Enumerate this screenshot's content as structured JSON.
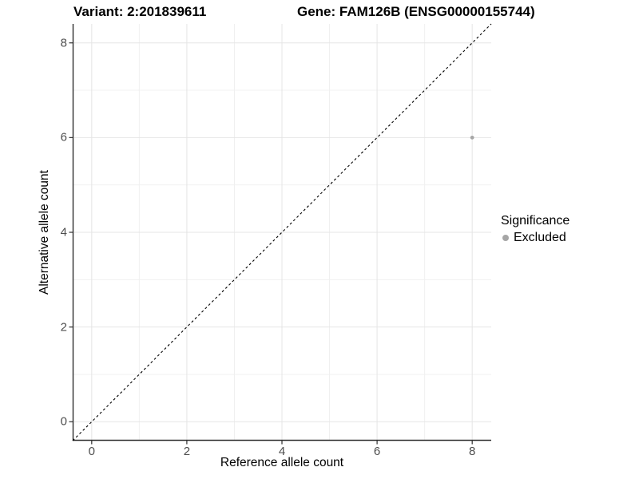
{
  "header": {
    "variant_title": "Variant: 2:201839611",
    "gene_title": "Gene: FAM126B (ENSG00000155744)"
  },
  "chart_data": {
    "type": "scatter",
    "title": "Variant: 2:201839611 | Gene: FAM126B (ENSG00000155744)",
    "xlabel": "Reference allele count",
    "ylabel": "Alternative allele count",
    "xlim": [
      -0.4,
      8.4
    ],
    "ylim": [
      -0.4,
      8.4
    ],
    "x_ticks": [
      0,
      2,
      4,
      6,
      8
    ],
    "y_ticks": [
      0,
      2,
      4,
      6,
      8
    ],
    "x_minor_gridlines": [
      1,
      3,
      5,
      7
    ],
    "y_minor_gridlines": [
      1,
      3,
      5,
      7
    ],
    "grid": true,
    "legend_position": "right",
    "series": [
      {
        "name": "Excluded",
        "color": "#a6a6a6",
        "points": [
          {
            "x": 8,
            "y": 6
          }
        ]
      }
    ],
    "reference_line": {
      "equation": "y = x",
      "style": "dashed",
      "color": "#000000"
    },
    "legend": {
      "title": "Significance",
      "items": [
        {
          "label": "Excluded",
          "color": "#a6a6a6"
        }
      ]
    },
    "colors": {
      "background": "#ffffff",
      "major_gridline": "#e5e5e5",
      "minor_gridline": "#f0f0f0",
      "axis_line": "#2f2f2f",
      "tick_text": "#4d4d4d",
      "point": "#a6a6a6"
    }
  }
}
